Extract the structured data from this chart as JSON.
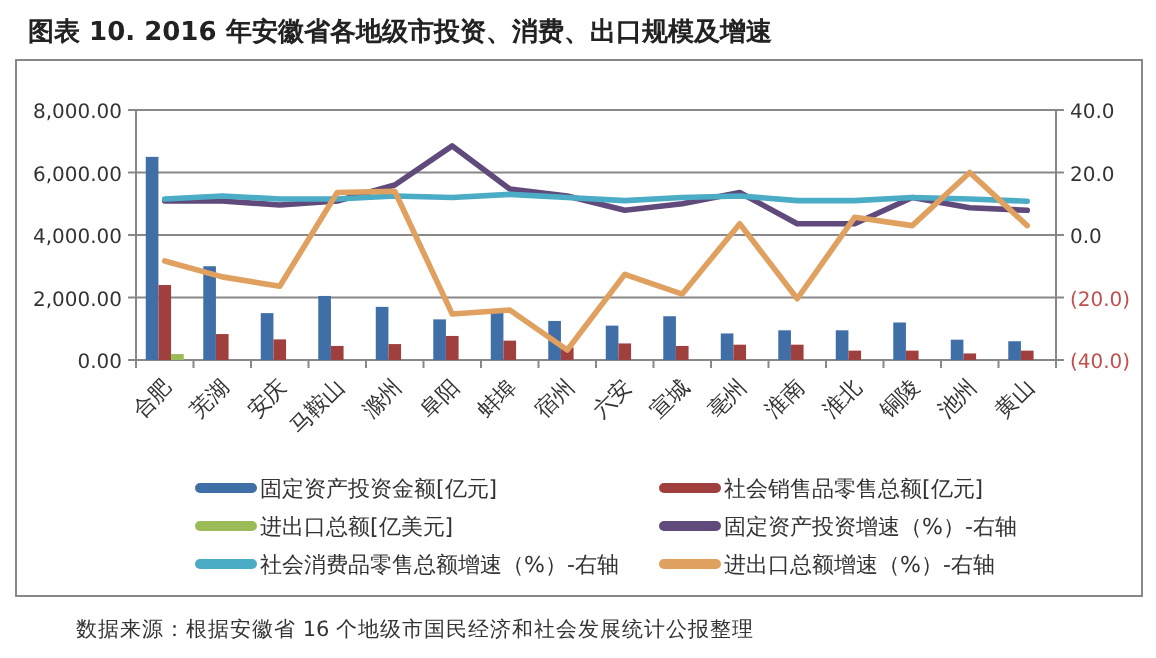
{
  "chart_data": {
    "type": "bar",
    "title": "图表 10. 2016 年安徽省各地级市投资、消费、出口规模及增速",
    "annotations": [
      "数据来源：根据安徽省 16 个地级市国民经济和社会发展统计公报整理"
    ],
    "categories": [
      "合肥",
      "芜湖",
      "安庆",
      "马鞍山",
      "滁州",
      "阜阳",
      "蚌埠",
      "宿州",
      "六安",
      "宣城",
      "亳州",
      "淮南",
      "淮北",
      "铜陵",
      "池州",
      "黄山"
    ],
    "series": [
      {
        "name": "固定资产投资金额[亿元]",
        "color": "#3f6fa6",
        "values": [
          6500,
          3000,
          1500,
          2050,
          1700,
          1300,
          1550,
          1250,
          1100,
          1400,
          850,
          950,
          950,
          1200,
          650,
          600
        ]
      },
      {
        "name": "社会销售品零售总额[亿元]",
        "color": "#a0403e",
        "values": [
          2400,
          830,
          660,
          450,
          510,
          770,
          620,
          400,
          530,
          450,
          490,
          490,
          300,
          300,
          210,
          300
        ]
      },
      {
        "name": "进出口总额[亿美元]",
        "color": "#9bbb59",
        "values": [
          190,
          null,
          null,
          null,
          null,
          null,
          null,
          null,
          null,
          null,
          null,
          null,
          null,
          null,
          null,
          null
        ]
      },
      {
        "name": "固定资产投资增速（%）-右轴",
        "type": "line",
        "axis": "y2",
        "color": "#604a7b",
        "values": [
          10.9,
          10.9,
          9.6,
          10.9,
          16,
          28.5,
          14.7,
          12.5,
          7.9,
          10,
          13.6,
          3.6,
          3.6,
          12,
          8.7,
          7.9
        ]
      },
      {
        "name": "社会消费品零售总额增速（%）-右轴",
        "type": "line",
        "axis": "y2",
        "color": "#4bacc6",
        "values": [
          11.5,
          12.5,
          11.5,
          11.5,
          12.5,
          12,
          13,
          12,
          11,
          12,
          12.5,
          11,
          11,
          12,
          11.5,
          10.8
        ]
      },
      {
        "name": "进出口总额增速（%）-右轴",
        "type": "line",
        "axis": "y2",
        "color": "#e0a060",
        "values": [
          -8.3,
          -13.4,
          -16.4,
          13.6,
          14,
          -25.3,
          -24,
          -36.8,
          -12.6,
          -18.9,
          3.6,
          -20.4,
          5.7,
          3,
          20,
          3
        ]
      }
    ],
    "ylim": [
      0,
      8000
    ],
    "yticks": [
      {
        "value": 0,
        "label": "0.00"
      },
      {
        "value": 2000,
        "label": "2,000.00"
      },
      {
        "value": 4000,
        "label": "4,000.00"
      },
      {
        "value": 6000,
        "label": "6,000.00"
      },
      {
        "value": 8000,
        "label": "8,000.00"
      }
    ],
    "y2lim": [
      -40,
      40
    ],
    "y2ticks": [
      {
        "value": -40,
        "label": "(40.0)"
      },
      {
        "value": -20,
        "label": "(20.0)"
      },
      {
        "value": 0,
        "label": "0.0"
      },
      {
        "value": 20,
        "label": "20.0"
      },
      {
        "value": 40,
        "label": "40.0"
      }
    ],
    "grid": "y",
    "legend": "bottom",
    "line_style": "solid",
    "marker": "none"
  }
}
